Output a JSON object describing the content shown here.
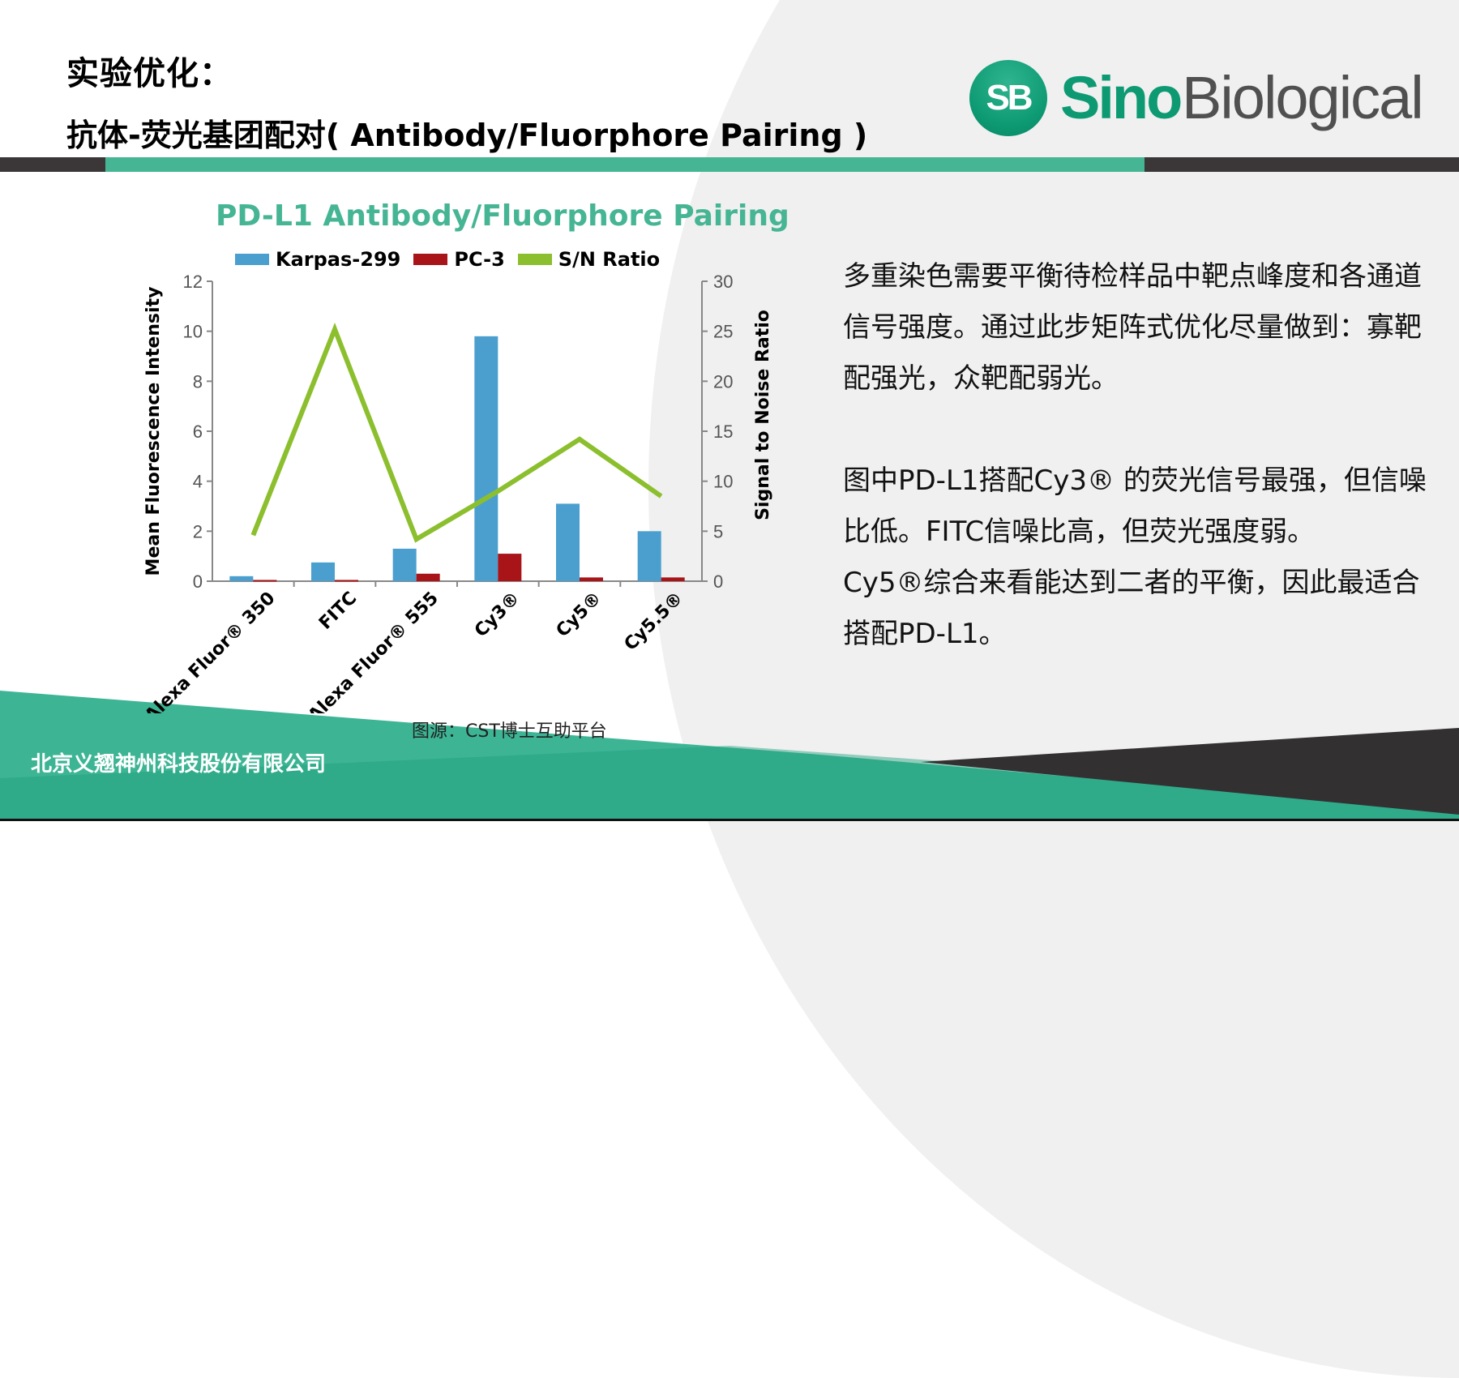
{
  "slide": {
    "title": "实验优化：",
    "subtitle": "抗体-荧光基团配对( Antibody/Fluorphore Pairing )",
    "logo": {
      "mark": "SB",
      "brand_part1": "Sino",
      "brand_part2": "Biological"
    },
    "colors": {
      "accent_green": "#45b594",
      "dark": "#3b3738",
      "logo_green": "#0d9a73"
    }
  },
  "chart_data": {
    "type": "bar",
    "title": "PD-L1 Antibody/Fluorphore Pairing",
    "categories": [
      "Alexa Fluor® 350",
      "FITC",
      "Alexa Fluor® 555",
      "Cy3®",
      "Cy5®",
      "Cy5.5®"
    ],
    "series": [
      {
        "name": "Karpas-299",
        "type": "bar",
        "axis": "left",
        "color": "#4a9fcf",
        "values": [
          0.2,
          0.75,
          1.3,
          9.8,
          3.1,
          2.0
        ]
      },
      {
        "name": "PC-3",
        "type": "bar",
        "axis": "left",
        "color": "#a81418",
        "values": [
          0.05,
          0.05,
          0.3,
          1.1,
          0.15,
          0.15
        ]
      },
      {
        "name": "S/N Ratio",
        "type": "line",
        "axis": "right",
        "color": "#8cbf2e",
        "values": [
          4.6,
          25.2,
          4.2,
          9.0,
          14.2,
          8.5
        ]
      }
    ],
    "ylabel": "Mean Fluorescence Intensity",
    "ylim": [
      0,
      12
    ],
    "yticks": [
      "0",
      "2",
      "4",
      "6",
      "8",
      "10",
      "12"
    ],
    "y2label": "Signal to Noise Ratio",
    "y2lim": [
      0,
      30
    ],
    "y2ticks": [
      "0",
      "5",
      "10",
      "15",
      "20",
      "25",
      "30"
    ],
    "legend": [
      "Karpas-299",
      "PC-3",
      "S/N Ratio"
    ],
    "legend_position": "top",
    "grid": false
  },
  "text": {
    "para1": "多重染色需要平衡待检样品中靶点峰度和各通道信号强度。通过此步矩阵式优化尽量做到：寡靶配强光，众靶配弱光。",
    "para2_line1": "图中PD-L1搭配Cy3® 的荧光信号最强，但信噪比低。FITC信噪比高，但荧光强度弱。",
    "para2_line2": "Cy5®综合来看能达到二者的平衡，因此最适合搭配PD-L1。"
  },
  "footer": {
    "source": "图源：CST博士互助平台",
    "company": "北京义翘神州科技股份有限公司"
  }
}
